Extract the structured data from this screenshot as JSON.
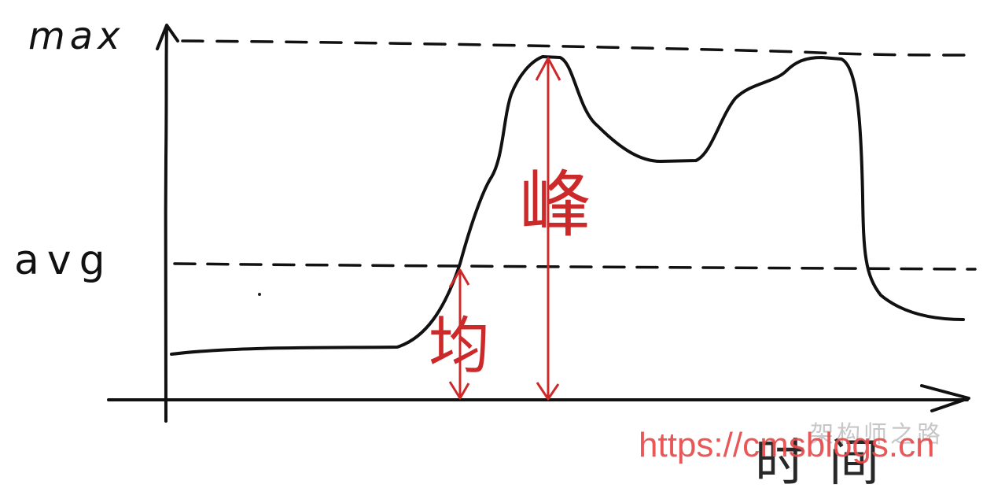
{
  "labels": {
    "y_top": "max",
    "y_mid": "avg",
    "x_axis": "时间"
  },
  "annotations": {
    "peak_char": "峰",
    "average_char": "均"
  },
  "watermark": {
    "url": "https://www.cmsblogs.cn",
    "url_visible": "https://cmsblogs.cn",
    "ghost": "架构师之路"
  },
  "colors": {
    "ink": "#111111",
    "annotation": "#cc2a2a",
    "watermark": "#e84a4a"
  }
}
